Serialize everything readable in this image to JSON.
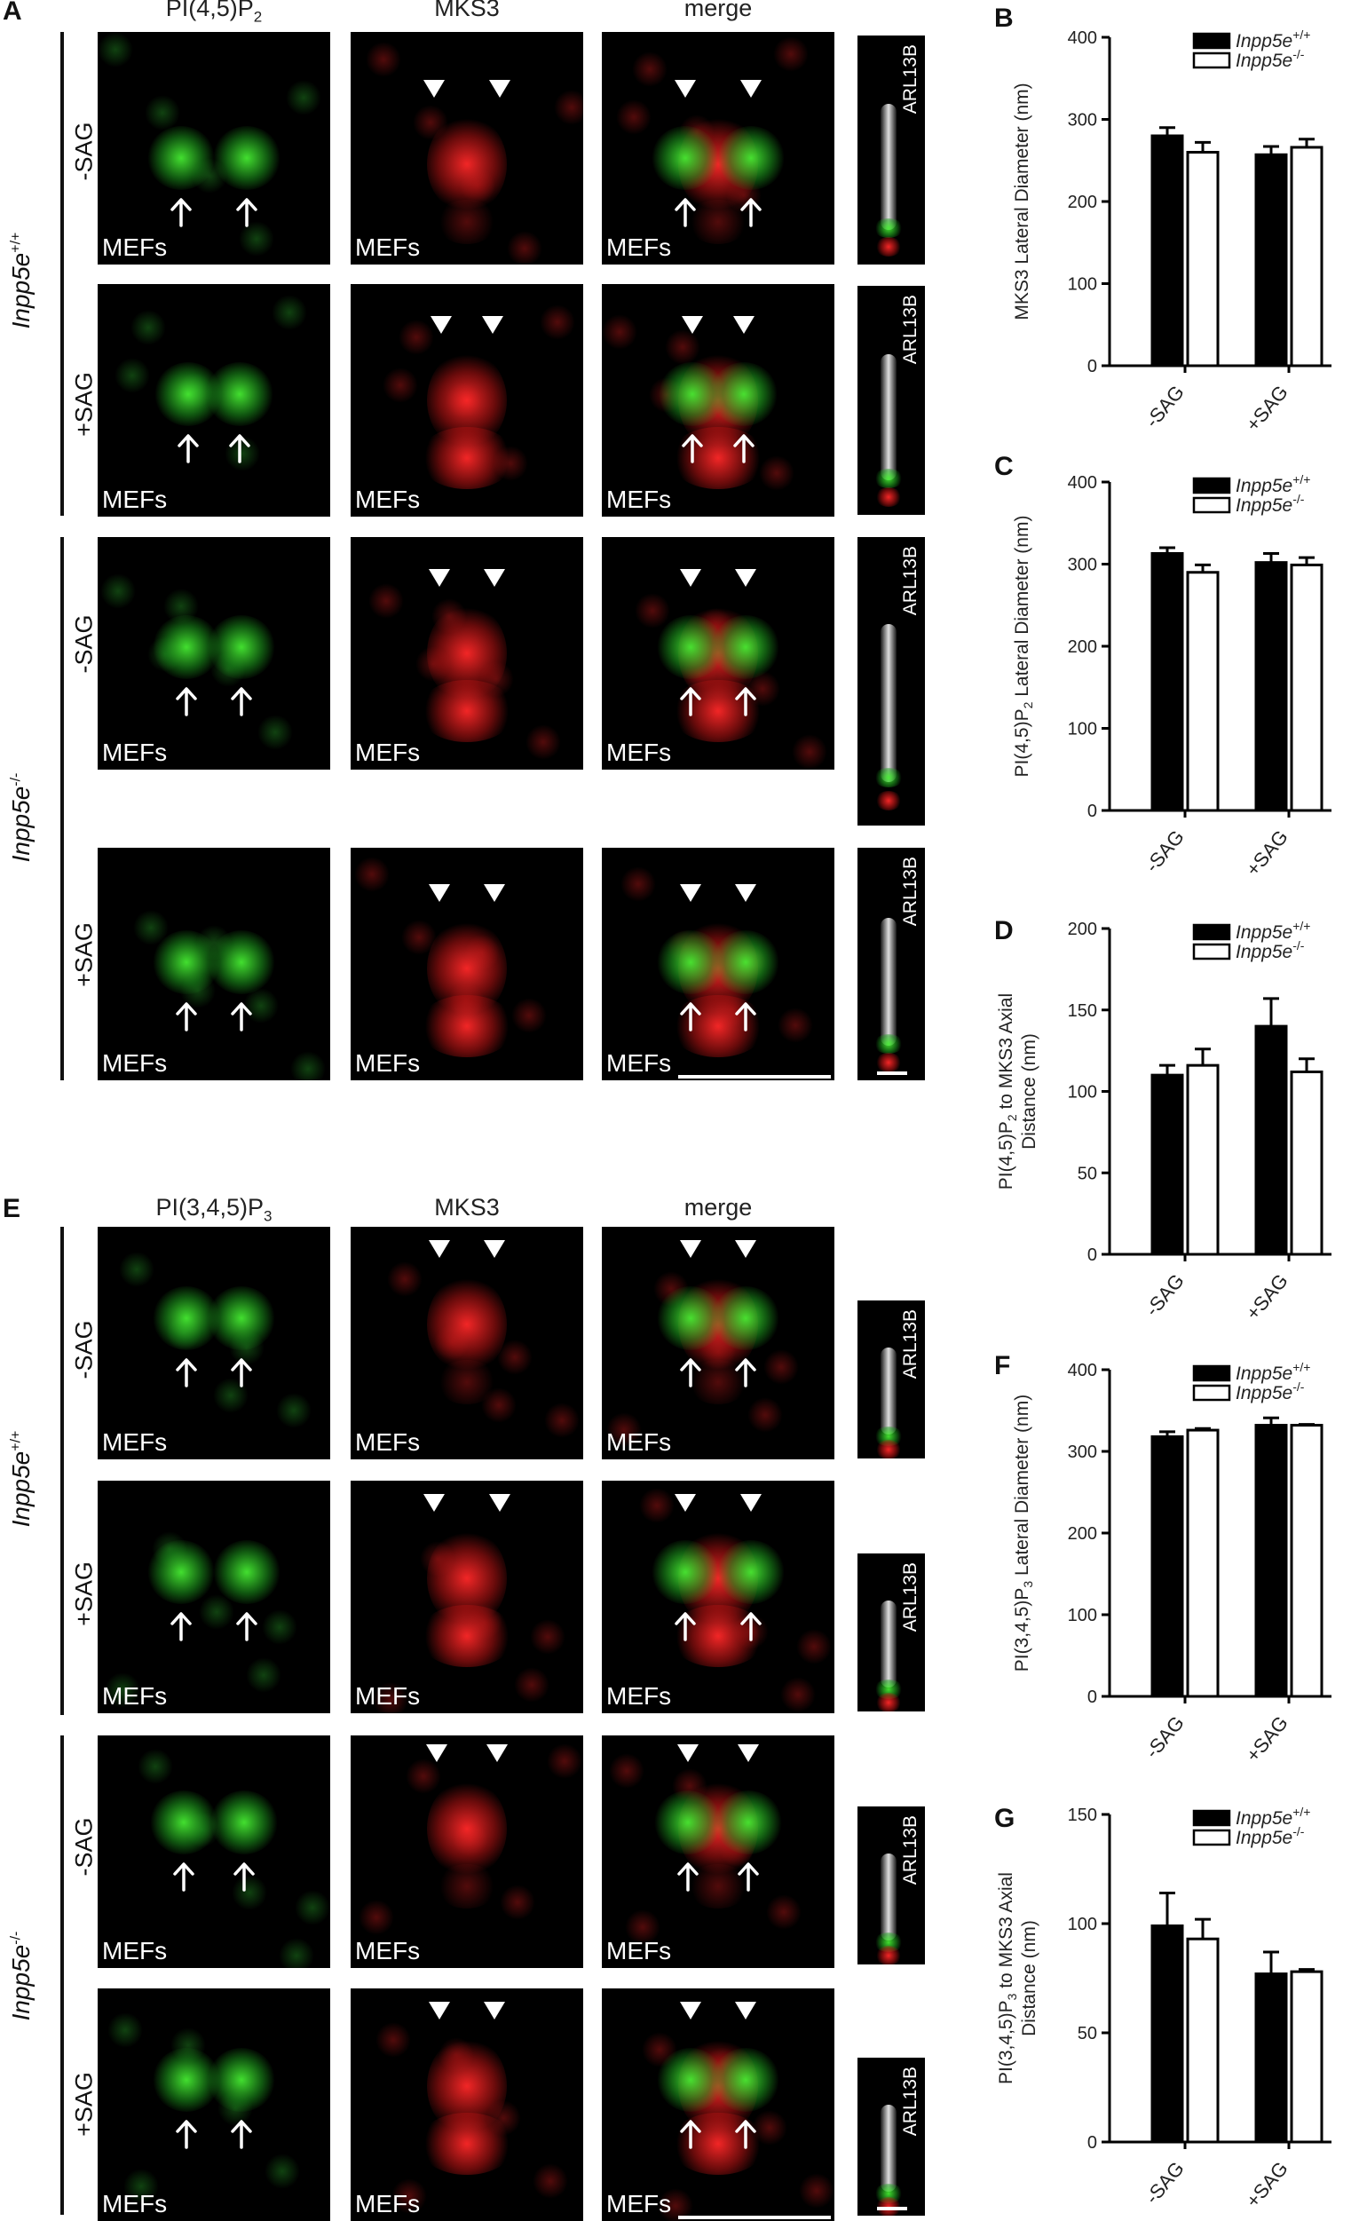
{
  "panels": {
    "A": {
      "letter": "A",
      "col_titles": {
        "c1_main": "PI(4,5)P",
        "c1_sub": "2",
        "c2": "MKS3",
        "c3": "merge"
      }
    },
    "E": {
      "letter": "E",
      "col_titles": {
        "c1_main": "PI(3,4,5)P",
        "c1_sub": "3",
        "c2": "MKS3",
        "c3": "merge"
      }
    }
  },
  "cell_label": "MEFs",
  "strip_label": "ARL13B",
  "row_labels": {
    "minus": "-SAG",
    "plus": "+SAG"
  },
  "genotypes": {
    "wt_base": "Inpp5e",
    "wt_sup": "+/+",
    "ko_base": "Inpp5e",
    "ko_sup": "-/-"
  },
  "icons": {
    "arrow": "arrow-up-icon",
    "arrowhead": "arrowhead-down-icon"
  },
  "colors": {
    "wt_bar": "#000000",
    "ko_bar": "#ffffff",
    "green": "#3ce632",
    "red": "#ff2828",
    "ciliary": "#e6e6e6"
  },
  "chart_data": [
    {
      "id": "B",
      "type": "bar",
      "letter": "B",
      "categories": [
        "-SAG",
        "+SAG"
      ],
      "ylabel": "MKS3 Lateral Diameter (nm)",
      "ylabel_main": "MKS3 Lateral Diameter (nm)",
      "ylabel_sub": "",
      "ylabel_rest": "",
      "ylabel2": "",
      "ylim": [
        0,
        400
      ],
      "yticks": [
        "0",
        "100",
        "200",
        "300",
        "400"
      ],
      "legend_placement": "top-right",
      "series": [
        {
          "name": "Inpp5e",
          "name_sup": "+/+",
          "values": [
            280,
            257
          ],
          "errors": [
            10,
            10
          ],
          "color": "#000000"
        },
        {
          "name": "Inpp5e",
          "name_sup": "-/-",
          "values": [
            260,
            266
          ],
          "errors": [
            12,
            10
          ],
          "color": "#ffffff"
        }
      ]
    },
    {
      "id": "C",
      "type": "bar",
      "letter": "C",
      "categories": [
        "-SAG",
        "+SAG"
      ],
      "ylabel_main": "PI(4,5)P",
      "ylabel_sub": "2",
      "ylabel_rest": " Lateral Diameter (nm)",
      "ylabel2": "",
      "ylim": [
        0,
        400
      ],
      "yticks": [
        "0",
        "100",
        "200",
        "300",
        "400"
      ],
      "legend_placement": "top-right",
      "series": [
        {
          "name": "Inpp5e",
          "name_sup": "+/+",
          "values": [
            313,
            302
          ],
          "errors": [
            7,
            11
          ],
          "color": "#000000"
        },
        {
          "name": "Inpp5e",
          "name_sup": "-/-",
          "values": [
            290,
            299
          ],
          "errors": [
            9,
            9
          ],
          "color": "#ffffff"
        }
      ]
    },
    {
      "id": "D",
      "type": "bar",
      "letter": "D",
      "categories": [
        "-SAG",
        "+SAG"
      ],
      "ylabel_main": "PI(4,5)P",
      "ylabel_sub": "2",
      "ylabel_rest": " to MKS3 Axial",
      "ylabel2": "Distance (nm)",
      "ylim": [
        0,
        200
      ],
      "yticks": [
        "0",
        "50",
        "100",
        "150",
        "200"
      ],
      "legend_placement": "top-right",
      "series": [
        {
          "name": "Inpp5e",
          "name_sup": "+/+",
          "values": [
            110,
            140
          ],
          "errors": [
            6,
            17
          ],
          "color": "#000000"
        },
        {
          "name": "Inpp5e",
          "name_sup": "-/-",
          "values": [
            116,
            112
          ],
          "errors": [
            10,
            8
          ],
          "color": "#ffffff"
        }
      ]
    },
    {
      "id": "F",
      "type": "bar",
      "letter": "F",
      "categories": [
        "-SAG",
        "+SAG"
      ],
      "ylabel_main": "PI(3,4,5)P",
      "ylabel_sub": "3",
      "ylabel_rest": " Lateral Diameter (nm)",
      "ylabel2": "",
      "ylim": [
        0,
        400
      ],
      "yticks": [
        "0",
        "100",
        "200",
        "300",
        "400"
      ],
      "legend_placement": "top-right",
      "series": [
        {
          "name": "Inpp5e",
          "name_sup": "+/+",
          "values": [
            318,
            332
          ],
          "errors": [
            6,
            9
          ],
          "color": "#000000"
        },
        {
          "name": "Inpp5e",
          "name_sup": "-/-",
          "values": [
            326,
            332
          ],
          "errors": [
            2,
            1
          ],
          "color": "#ffffff"
        }
      ]
    },
    {
      "id": "G",
      "type": "bar",
      "letter": "G",
      "categories": [
        "-SAG",
        "+SAG"
      ],
      "ylabel_main": "PI(3,4,5)P",
      "ylabel_sub": "3",
      "ylabel_rest": " to MKS3 Axial",
      "ylabel2": "Distance (nm)",
      "ylim": [
        0,
        150
      ],
      "yticks": [
        "0",
        "50",
        "100",
        "150"
      ],
      "legend_placement": "top-right",
      "series": [
        {
          "name": "Inpp5e",
          "name_sup": "+/+",
          "values": [
            99,
            77
          ],
          "errors": [
            15,
            10
          ],
          "color": "#000000"
        },
        {
          "name": "Inpp5e",
          "name_sup": "-/-",
          "values": [
            93,
            78
          ],
          "errors": [
            9,
            1
          ],
          "color": "#ffffff"
        }
      ]
    }
  ]
}
